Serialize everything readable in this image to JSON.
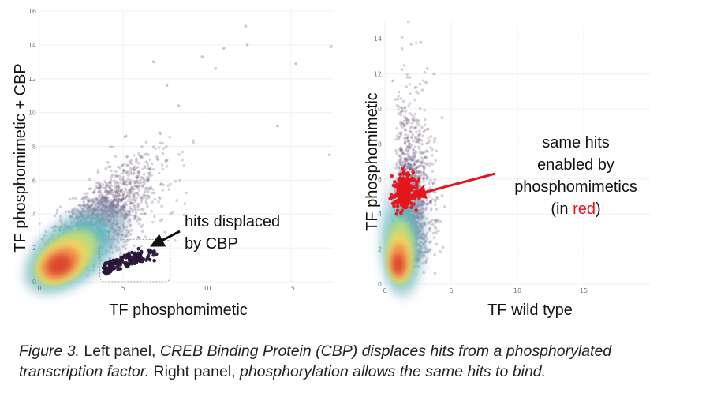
{
  "chart_data": [
    {
      "type": "scatter",
      "name": "left",
      "xlabel": "TF phosphomimetic",
      "ylabel": "TF phosphomimetic + CBP",
      "xlim": [
        0,
        17.5
      ],
      "ylim": [
        0,
        16
      ],
      "xticks": [
        0,
        5,
        10,
        15
      ],
      "yticks": [
        0,
        2,
        4,
        6,
        8,
        10,
        12,
        14,
        16
      ],
      "density_center": [
        1.2,
        1.0
      ],
      "highlight": {
        "label": "hits displaced by CBP",
        "color": "#2b1638",
        "x_range": [
          3.8,
          7.4
        ],
        "y_range": [
          0.4,
          2.2
        ],
        "box": {
          "x": [
            3.6,
            7.8
          ],
          "y": [
            0.0,
            2.5
          ]
        }
      },
      "annotation": {
        "line1": "hits displaced",
        "line2": "by CBP",
        "arrow_to": [
          6.6,
          2.1
        ]
      },
      "outliers": [
        [
          6.8,
          13.0
        ],
        [
          9.7,
          13.3
        ],
        [
          12.3,
          15.1
        ],
        [
          12.4,
          14.0
        ],
        [
          15.3,
          12.9
        ],
        [
          8.3,
          10.4
        ],
        [
          14.2,
          9.2
        ],
        [
          17.3,
          7.5
        ],
        [
          17.4,
          13.9
        ],
        [
          10.5,
          12.6
        ],
        [
          11.0,
          13.8
        ],
        [
          7.6,
          11.6
        ]
      ]
    },
    {
      "type": "scatter",
      "name": "right",
      "xlabel": "TF wild type",
      "ylabel": "TF phosphomimetic",
      "xlim": [
        0,
        20
      ],
      "ylim": [
        0,
        15
      ],
      "xticks": [
        0,
        5,
        10,
        15
      ],
      "yticks": [
        0,
        2,
        4,
        6,
        8,
        10,
        12,
        14
      ],
      "density_center": [
        1.0,
        1.0
      ],
      "highlight": {
        "label": "same hits enabled by phosphomimetics",
        "color": "#e8141b",
        "x_range": [
          0.4,
          2.6
        ],
        "y_range": [
          4.0,
          6.6
        ]
      },
      "annotation": {
        "line1": "same hits",
        "line2": "enabled by",
        "line3": "phosphomimetics",
        "line4_pre": "(in ",
        "line4_red": "red",
        "line4_post": ")",
        "arrow_to": [
          2.0,
          5.0
        ]
      },
      "outliers": [
        [
          2.7,
          13.8
        ],
        [
          3.2,
          12.3
        ],
        [
          3.7,
          12.0
        ],
        [
          0.6,
          11.6
        ],
        [
          3.1,
          11.5
        ],
        [
          1.2,
          9.8
        ],
        [
          4.3,
          9.5
        ]
      ]
    }
  ],
  "caption": {
    "label": "Figure 3.",
    "p1": " Left panel, ",
    "i1": "CREB Binding Protein (CBP) displaces hits from a phosphorylated transcription factor.",
    "p2": " Right panel, ",
    "i2": "phosphorylation allows the same hits to bind."
  }
}
